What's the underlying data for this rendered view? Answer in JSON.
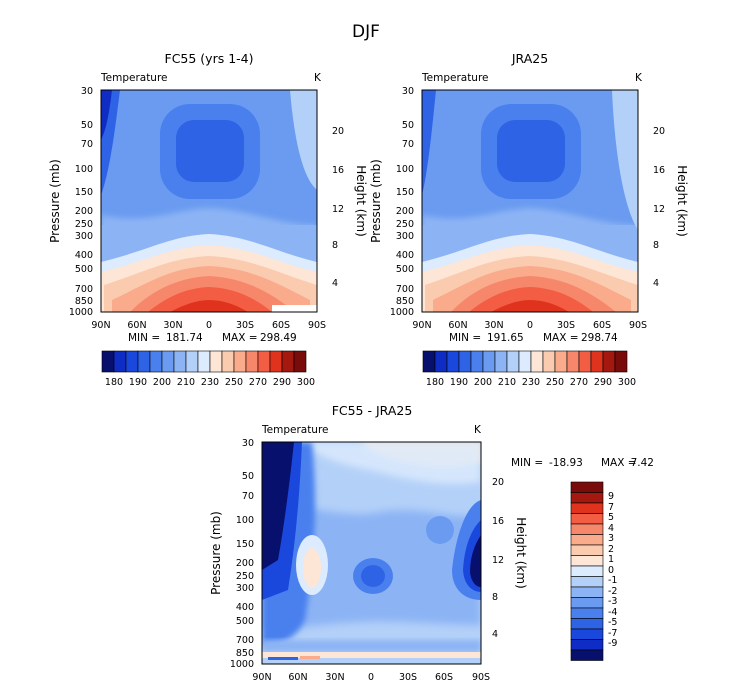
{
  "figure": {
    "title": "DJF",
    "field_label": "Temperature",
    "unit": "K"
  },
  "colors": {
    "abs": [
      "#08106e",
      "#0f2cc4",
      "#1b48dc",
      "#2f63e6",
      "#4a80ee",
      "#6a9bf0",
      "#8cb4f4",
      "#b3d0f8",
      "#dcebfd",
      "#fde6d6",
      "#fbcbb0",
      "#f9ab8c",
      "#f6876a",
      "#f25d44",
      "#e0331e",
      "#a41810",
      "#7a0b0b"
    ],
    "diff": [
      "#08106e",
      "#0f2cc4",
      "#1b48dc",
      "#2f63e6",
      "#4a80ee",
      "#6a9bf0",
      "#8cb4f4",
      "#b3d0f8",
      "#dcebfd",
      "#fde6d6",
      "#fbcbb0",
      "#f9ab8c",
      "#f6876a",
      "#f25d44",
      "#e0331e",
      "#a41810",
      "#7a0b0b"
    ]
  },
  "chart_data": [
    {
      "type": "heatmap",
      "title": "FC55 (yrs 1-4)",
      "field_label": "Temperature",
      "unit": "K",
      "ylabel": "Pressure (mb)",
      "ylabel_right": "Height (km)",
      "x_ticks": [
        "90N",
        "60N",
        "30N",
        "0",
        "30S",
        "60S",
        "90S"
      ],
      "y_ticks": [
        "30",
        "50",
        "70",
        "100",
        "150",
        "200",
        "250",
        "300",
        "400",
        "500",
        "700",
        "850",
        "1000"
      ],
      "y_ticks_right": [
        "20",
        "16",
        "12",
        "8",
        "4"
      ],
      "stats": {
        "min_label": "MIN =",
        "min": "181.74",
        "max_label": "MAX =",
        "max": "298.49"
      },
      "colorbar": {
        "orientation": "horizontal",
        "labels": [
          "180",
          "190",
          "200",
          "210",
          "230",
          "250",
          "270",
          "290",
          "300"
        ]
      }
    },
    {
      "type": "heatmap",
      "title": "JRA25",
      "field_label": "Temperature",
      "unit": "K",
      "ylabel": "Pressure (mb)",
      "ylabel_right": "Height (km)",
      "x_ticks": [
        "90N",
        "60N",
        "30N",
        "0",
        "30S",
        "60S",
        "90S"
      ],
      "y_ticks": [
        "30",
        "50",
        "70",
        "100",
        "150",
        "200",
        "250",
        "300",
        "400",
        "500",
        "700",
        "850",
        "1000"
      ],
      "y_ticks_right": [
        "20",
        "16",
        "12",
        "8",
        "4"
      ],
      "stats": {
        "min_label": "MIN =",
        "min": "191.65",
        "max_label": "MAX =",
        "max": "298.74"
      },
      "colorbar": {
        "orientation": "horizontal",
        "labels": [
          "180",
          "190",
          "200",
          "210",
          "230",
          "250",
          "270",
          "290",
          "300"
        ]
      }
    },
    {
      "type": "heatmap",
      "title": "FC55 - JRA25",
      "field_label": "Temperature",
      "unit": "K",
      "ylabel": "Pressure (mb)",
      "ylabel_right": "Height (km)",
      "x_ticks": [
        "90N",
        "60N",
        "30N",
        "0",
        "30S",
        "60S",
        "90S"
      ],
      "y_ticks": [
        "30",
        "50",
        "70",
        "100",
        "150",
        "200",
        "250",
        "300",
        "400",
        "500",
        "700",
        "850",
        "1000"
      ],
      "y_ticks_right": [
        "20",
        "16",
        "12",
        "8",
        "4"
      ],
      "stats": {
        "min_label": "MIN =",
        "min": "-18.93",
        "max_label": "MAX =",
        "max": "7.42"
      },
      "colorbar": {
        "orientation": "vertical",
        "labels": [
          "9",
          "7",
          "5",
          "4",
          "3",
          "2",
          "1",
          "0",
          "-1",
          "-2",
          "-3",
          "-4",
          "-5",
          "-7",
          "-9"
        ]
      }
    }
  ]
}
